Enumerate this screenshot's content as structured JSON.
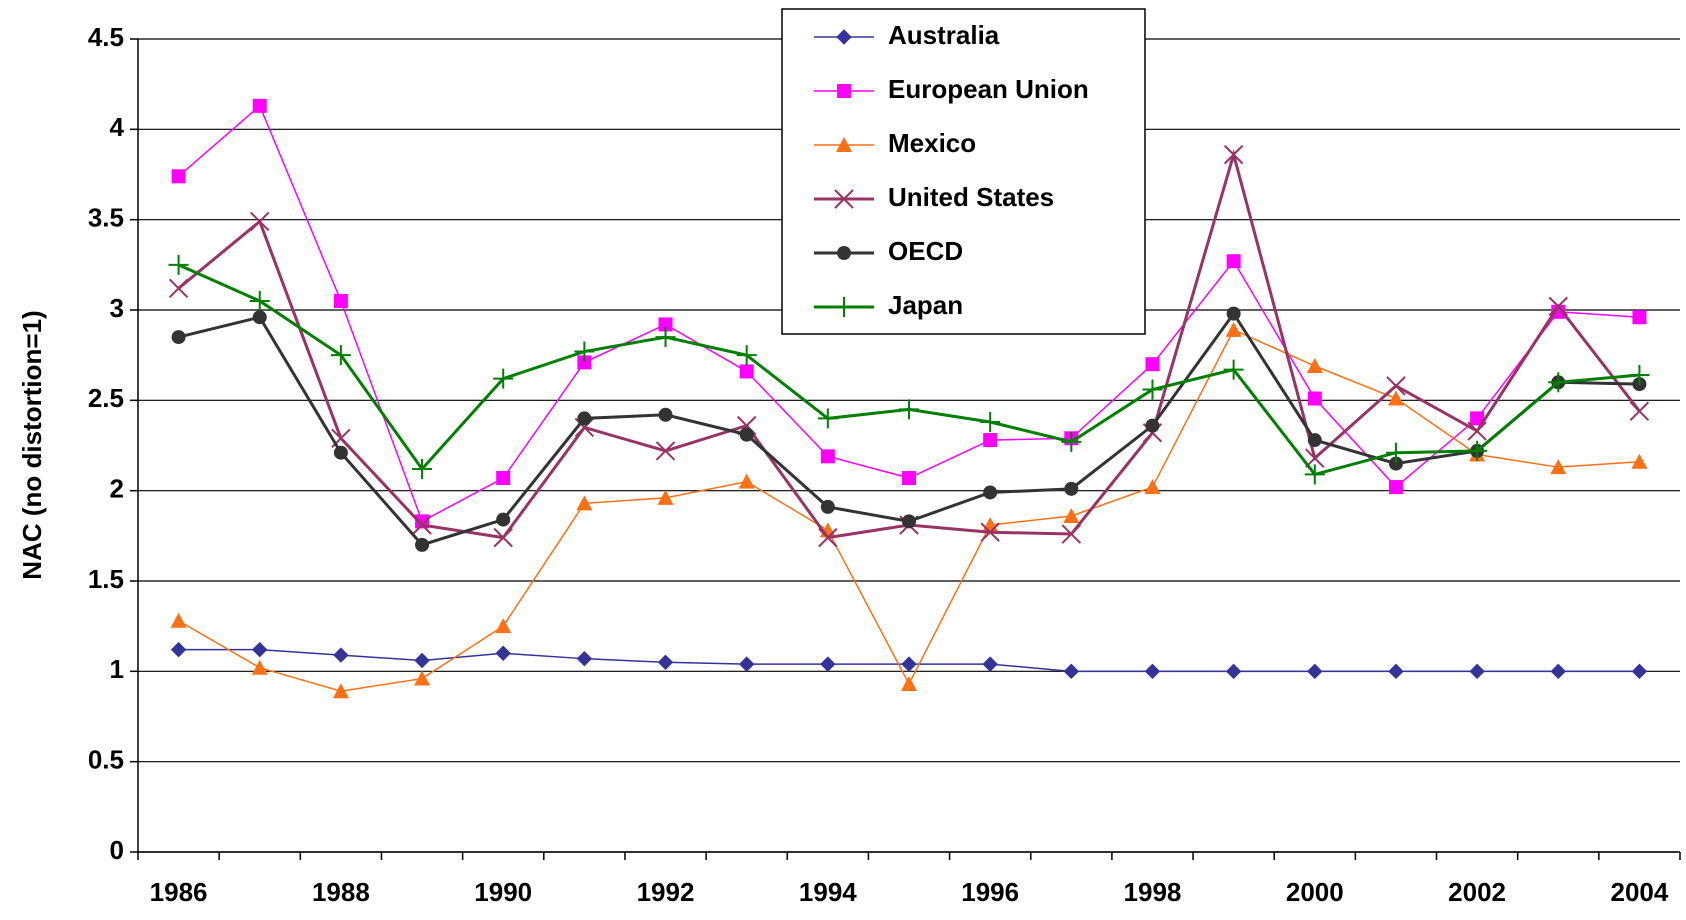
{
  "chart_data": {
    "type": "line",
    "y_label": "NAC (no distortion=1)",
    "categories": [
      "1986",
      null,
      "1988",
      null,
      "1990",
      null,
      "1992",
      null,
      "1994",
      null,
      "1996",
      null,
      "1998",
      null,
      "2000",
      null,
      "2002",
      null,
      "2004"
    ],
    "ylim": [
      0,
      4.5
    ],
    "yticks": [
      0,
      0.5,
      1,
      1.5,
      2,
      2.5,
      3,
      3.5,
      4,
      4.5
    ],
    "grid": true,
    "legend": "top",
    "series": [
      {
        "name": "Australia",
        "color": "#333399",
        "marker": "diamond",
        "width": 1.5,
        "values": [
          1.12,
          1.12,
          1.09,
          1.06,
          1.1,
          1.07,
          1.05,
          1.04,
          1.04,
          1.04,
          1.04,
          1.0,
          1.0,
          1.0,
          1.0,
          1.0,
          1.0,
          1.0,
          1.0
        ]
      },
      {
        "name": "European Union",
        "color": "#ff00ff",
        "marker": "square",
        "width": 1.5,
        "values": [
          3.74,
          4.13,
          3.05,
          1.83,
          2.07,
          2.71,
          2.92,
          2.66,
          2.19,
          2.07,
          2.28,
          2.29,
          2.7,
          3.27,
          2.51,
          2.02,
          2.4,
          2.99,
          2.96
        ]
      },
      {
        "name": "Mexico",
        "color": "#ff7014",
        "marker": "triangle",
        "width": 1.5,
        "values": [
          1.28,
          1.02,
          0.89,
          0.96,
          1.25,
          1.93,
          1.96,
          2.05,
          1.78,
          0.93,
          1.81,
          1.86,
          2.02,
          2.89,
          2.69,
          2.51,
          2.2,
          2.13,
          2.16
        ]
      },
      {
        "name": "United States",
        "color": "#993366",
        "marker": "x",
        "width": 3,
        "values": [
          3.12,
          3.49,
          2.29,
          1.81,
          1.74,
          2.35,
          2.22,
          2.36,
          1.74,
          1.81,
          1.77,
          1.76,
          2.32,
          3.86,
          2.18,
          2.58,
          2.33,
          3.02,
          2.44
        ]
      },
      {
        "name": "OECD",
        "color": "#333333",
        "marker": "circle",
        "width": 3,
        "values": [
          2.85,
          2.96,
          2.21,
          1.7,
          1.84,
          2.4,
          2.42,
          2.31,
          1.91,
          1.83,
          1.99,
          2.01,
          2.36,
          2.98,
          2.28,
          2.15,
          2.22,
          2.6,
          2.59
        ]
      },
      {
        "name": "Japan",
        "color": "#008000",
        "marker": "plus",
        "width": 3,
        "values": [
          3.25,
          3.05,
          2.75,
          2.12,
          2.62,
          2.77,
          2.85,
          2.75,
          2.4,
          2.45,
          2.38,
          2.27,
          2.56,
          2.67,
          2.09,
          2.21,
          2.22,
          2.6,
          2.64
        ]
      }
    ]
  }
}
